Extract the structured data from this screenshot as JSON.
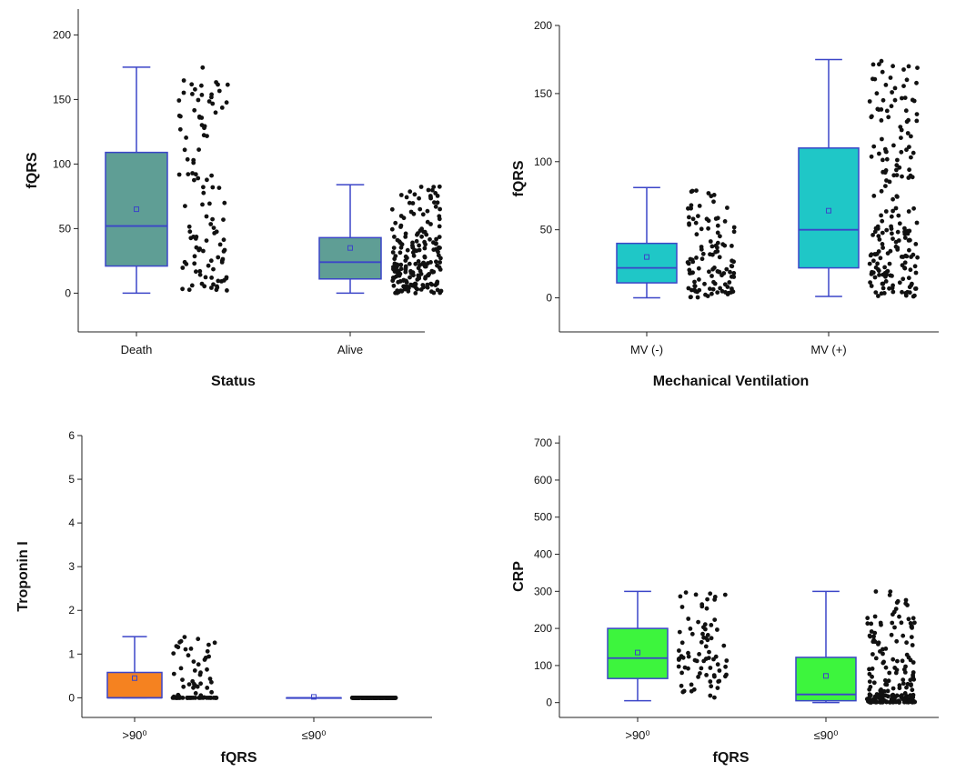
{
  "chart_data": [
    {
      "type": "box",
      "ylabel": "fQRS",
      "xlabel": "Status",
      "ylim": [
        -30,
        220
      ],
      "yticks": [
        0,
        50,
        100,
        150,
        200
      ],
      "box_color": "#5f9e95",
      "categories": [
        "Death",
        "Alive"
      ],
      "boxes": [
        {
          "category": "Death",
          "whisker_low": 0,
          "q1": 21,
          "median": 52,
          "q3": 109,
          "whisker_high": 175,
          "mean": 65
        },
        {
          "category": "Alive",
          "whisker_low": 0,
          "q1": 11,
          "median": 24,
          "q3": 43,
          "whisker_high": 84,
          "mean": 35
        }
      ]
    },
    {
      "type": "box",
      "ylabel": "fQRS",
      "xlabel": "Mechanical Ventilation",
      "ylim": [
        -25,
        200
      ],
      "yticks": [
        0,
        50,
        100,
        150,
        200
      ],
      "box_color": "#1fc7c7",
      "categories": [
        "MV (-)",
        "MV (+)"
      ],
      "boxes": [
        {
          "category": "MV (-)",
          "whisker_low": 0,
          "q1": 11,
          "median": 22,
          "q3": 40,
          "whisker_high": 81,
          "mean": 30
        },
        {
          "category": "MV (+)",
          "whisker_low": 1,
          "q1": 22,
          "median": 50,
          "q3": 110,
          "whisker_high": 175,
          "mean": 64
        }
      ]
    },
    {
      "type": "box",
      "ylabel": "Troponin I",
      "xlabel": "fQRS",
      "ylim": [
        -0.45,
        6
      ],
      "yticks": [
        0,
        1,
        2,
        3,
        4,
        5,
        6
      ],
      "box_color": "#f58220",
      "categories": [
        ">90⁰",
        "≤90⁰"
      ],
      "boxes": [
        {
          "category": ">90⁰",
          "whisker_low": 0,
          "q1": 0,
          "median": 0,
          "q3": 0.58,
          "whisker_high": 1.4,
          "mean": 0.45
        },
        {
          "category": "≤90⁰",
          "whisker_low": 0,
          "q1": 0,
          "median": 0,
          "q3": 0,
          "whisker_high": 0,
          "mean": 0.02
        }
      ]
    },
    {
      "type": "box",
      "ylabel": "CRP",
      "xlabel": "fQRS",
      "ylim": [
        -40,
        720
      ],
      "yticks": [
        0,
        100,
        200,
        300,
        400,
        500,
        600,
        700
      ],
      "box_color": "#3df53d",
      "categories": [
        ">90⁰",
        "≤90⁰"
      ],
      "boxes": [
        {
          "category": ">90⁰",
          "whisker_low": 5,
          "q1": 65,
          "median": 120,
          "q3": 200,
          "whisker_high": 300,
          "mean": 135
        },
        {
          "category": "≤90⁰",
          "whisker_low": 0,
          "q1": 5,
          "median": 22,
          "q3": 122,
          "whisker_high": 300,
          "mean": 72
        }
      ]
    }
  ]
}
